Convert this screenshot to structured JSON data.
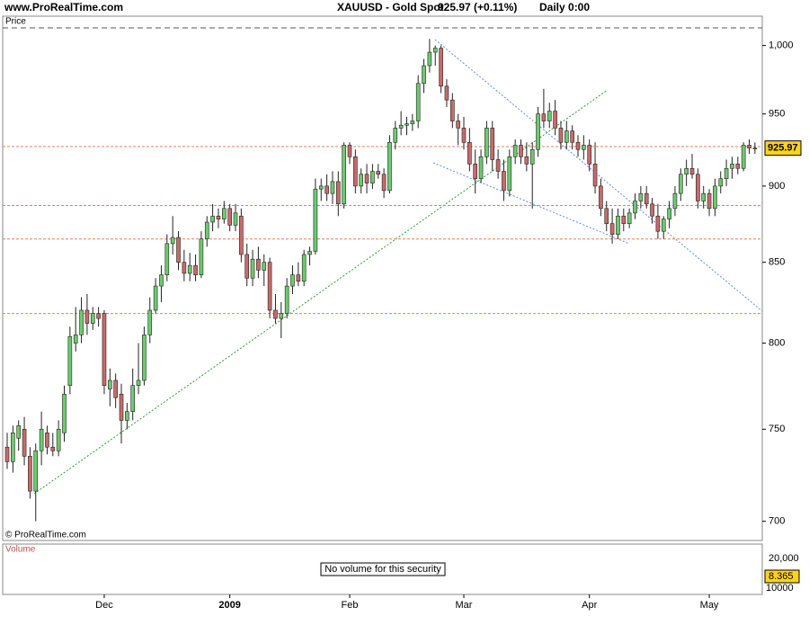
{
  "chart_data": {
    "type": "candlestick",
    "site": "www.ProRealTime.com",
    "title": "XAUUSD - Gold Spot",
    "quote": "925.97 (+0.11%)",
    "period": "Daily  0:00",
    "pane_label": "Price",
    "copyright": "© ProRealTime.com",
    "categories": [
      null,
      null,
      null,
      null,
      null,
      null,
      null,
      null,
      null,
      null,
      null,
      null,
      null,
      null,
      null,
      null,
      null,
      "Dec",
      null,
      null,
      null,
      null,
      null,
      null,
      null,
      null,
      null,
      null,
      null,
      null,
      null,
      null,
      null,
      null,
      null,
      null,
      null,
      null,
      null,
      "2009",
      null,
      null,
      null,
      null,
      null,
      null,
      null,
      null,
      null,
      null,
      null,
      null,
      null,
      null,
      null,
      null,
      null,
      null,
      null,
      null,
      "Feb",
      null,
      null,
      null,
      null,
      null,
      null,
      null,
      null,
      null,
      null,
      null,
      null,
      null,
      null,
      null,
      null,
      null,
      null,
      null,
      "Mar",
      null,
      null,
      null,
      null,
      null,
      null,
      null,
      null,
      null,
      null,
      null,
      null,
      null,
      null,
      null,
      null,
      null,
      null,
      null,
      null,
      null,
      "Apr",
      null,
      null,
      null,
      null,
      null,
      null,
      null,
      null,
      null,
      null,
      null,
      null,
      null,
      null,
      null,
      null,
      null,
      null,
      null,
      null,
      "May",
      null,
      null,
      null,
      null,
      null,
      null,
      null,
      null
    ],
    "open": [
      740,
      732,
      745,
      750,
      735,
      716,
      738,
      748,
      740,
      738,
      748,
      775,
      800,
      805,
      820,
      812,
      818,
      818,
      773,
      778,
      770,
      755,
      760,
      775,
      778,
      805,
      820,
      835,
      842,
      862,
      866,
      850,
      843,
      848,
      842,
      865,
      876,
      880,
      878,
      885,
      874,
      880,
      855,
      840,
      852,
      845,
      850,
      820,
      815,
      818,
      835,
      842,
      838,
      855,
      857,
      898,
      900,
      895,
      903,
      888,
      928,
      920,
      900,
      908,
      902,
      910,
      908,
      897,
      930,
      940,
      942,
      943,
      945,
      972,
      985,
      995,
      998,
      970,
      960,
      945,
      940,
      930,
      915,
      905,
      920,
      940,
      918,
      910,
      897,
      920,
      928,
      920,
      915,
      925,
      950,
      945,
      952,
      940,
      930,
      938,
      930,
      925,
      928,
      915,
      900,
      885,
      875,
      868,
      880,
      875,
      882,
      890,
      895,
      888,
      880,
      870,
      878,
      885,
      895,
      908,
      912,
      908,
      890,
      895,
      885,
      900,
      905,
      912,
      915,
      912,
      928,
      926
    ],
    "high": [
      748,
      752,
      755,
      757,
      740,
      742,
      760,
      752,
      748,
      755,
      775,
      810,
      822,
      828,
      830,
      822,
      822,
      820,
      785,
      782,
      776,
      765,
      785,
      800,
      810,
      828,
      840,
      848,
      868,
      880,
      870,
      858,
      856,
      855,
      870,
      880,
      888,
      885,
      890,
      888,
      888,
      885,
      862,
      858,
      860,
      855,
      853,
      830,
      825,
      840,
      848,
      850,
      858,
      860,
      905,
      905,
      908,
      910,
      910,
      930,
      930,
      925,
      912,
      915,
      915,
      915,
      912,
      935,
      945,
      952,
      948,
      950,
      978,
      990,
      1005,
      1000,
      1000,
      975,
      965,
      950,
      948,
      940,
      925,
      925,
      945,
      945,
      925,
      918,
      925,
      932,
      932,
      930,
      930,
      955,
      968,
      958,
      960,
      945,
      945,
      942,
      935,
      935,
      932,
      930,
      905,
      890,
      885,
      885,
      885,
      885,
      895,
      900,
      900,
      892,
      888,
      880,
      890,
      900,
      912,
      918,
      922,
      912,
      900,
      898,
      905,
      910,
      918,
      920,
      920,
      930,
      932,
      930
    ],
    "low": [
      728,
      726,
      738,
      730,
      712,
      700,
      730,
      736,
      735,
      735,
      743,
      770,
      795,
      800,
      805,
      808,
      810,
      770,
      763,
      762,
      742,
      750,
      755,
      770,
      775,
      800,
      818,
      825,
      838,
      855,
      845,
      838,
      838,
      838,
      840,
      860,
      870,
      872,
      875,
      870,
      870,
      850,
      835,
      835,
      840,
      835,
      815,
      812,
      803,
      815,
      830,
      835,
      835,
      848,
      855,
      890,
      890,
      888,
      880,
      885,
      915,
      895,
      895,
      895,
      898,
      905,
      892,
      895,
      925,
      935,
      935,
      938,
      940,
      965,
      980,
      985,
      965,
      955,
      940,
      928,
      925,
      910,
      895,
      902,
      915,
      910,
      905,
      890,
      893,
      915,
      915,
      910,
      885,
      920,
      940,
      940,
      935,
      925,
      925,
      925,
      920,
      918,
      910,
      895,
      880,
      870,
      862,
      865,
      870,
      872,
      878,
      885,
      885,
      875,
      865,
      865,
      872,
      880,
      890,
      900,
      905,
      885,
      885,
      880,
      880,
      895,
      900,
      905,
      908,
      910,
      922,
      922
    ],
    "close": [
      732,
      748,
      752,
      735,
      716,
      738,
      750,
      740,
      738,
      750,
      770,
      804,
      805,
      820,
      812,
      818,
      815,
      775,
      778,
      768,
      755,
      760,
      775,
      778,
      805,
      820,
      835,
      842,
      862,
      866,
      850,
      843,
      848,
      842,
      865,
      876,
      880,
      878,
      885,
      874,
      882,
      855,
      840,
      852,
      845,
      850,
      820,
      815,
      818,
      835,
      842,
      838,
      855,
      857,
      898,
      900,
      895,
      903,
      888,
      928,
      920,
      900,
      908,
      902,
      910,
      908,
      897,
      930,
      940,
      942,
      943,
      945,
      972,
      985,
      995,
      998,
      970,
      960,
      945,
      940,
      930,
      915,
      905,
      920,
      940,
      918,
      910,
      897,
      920,
      928,
      920,
      915,
      925,
      950,
      945,
      952,
      940,
      930,
      938,
      930,
      925,
      928,
      915,
      900,
      885,
      875,
      868,
      880,
      875,
      882,
      890,
      895,
      888,
      880,
      870,
      878,
      885,
      895,
      908,
      912,
      908,
      890,
      895,
      885,
      900,
      905,
      912,
      915,
      912,
      928,
      926,
      925.97
    ],
    "up_color": "#6ccb6c",
    "down_color": "#c96a6a",
    "log_scale": true,
    "ylim": [
      690,
      1014
    ],
    "yticks": [
      700,
      750,
      800,
      850,
      900,
      950,
      {
        "value": 1000,
        "label": "1,000"
      }
    ],
    "hlines": [
      927,
      887,
      865,
      818
    ],
    "hline_color": "#e8804f",
    "volume": {
      "label": "Volume",
      "message": "No volume for this security",
      "ticks": [
        "20,000",
        "10000"
      ],
      "marker": "8.365"
    }
  }
}
